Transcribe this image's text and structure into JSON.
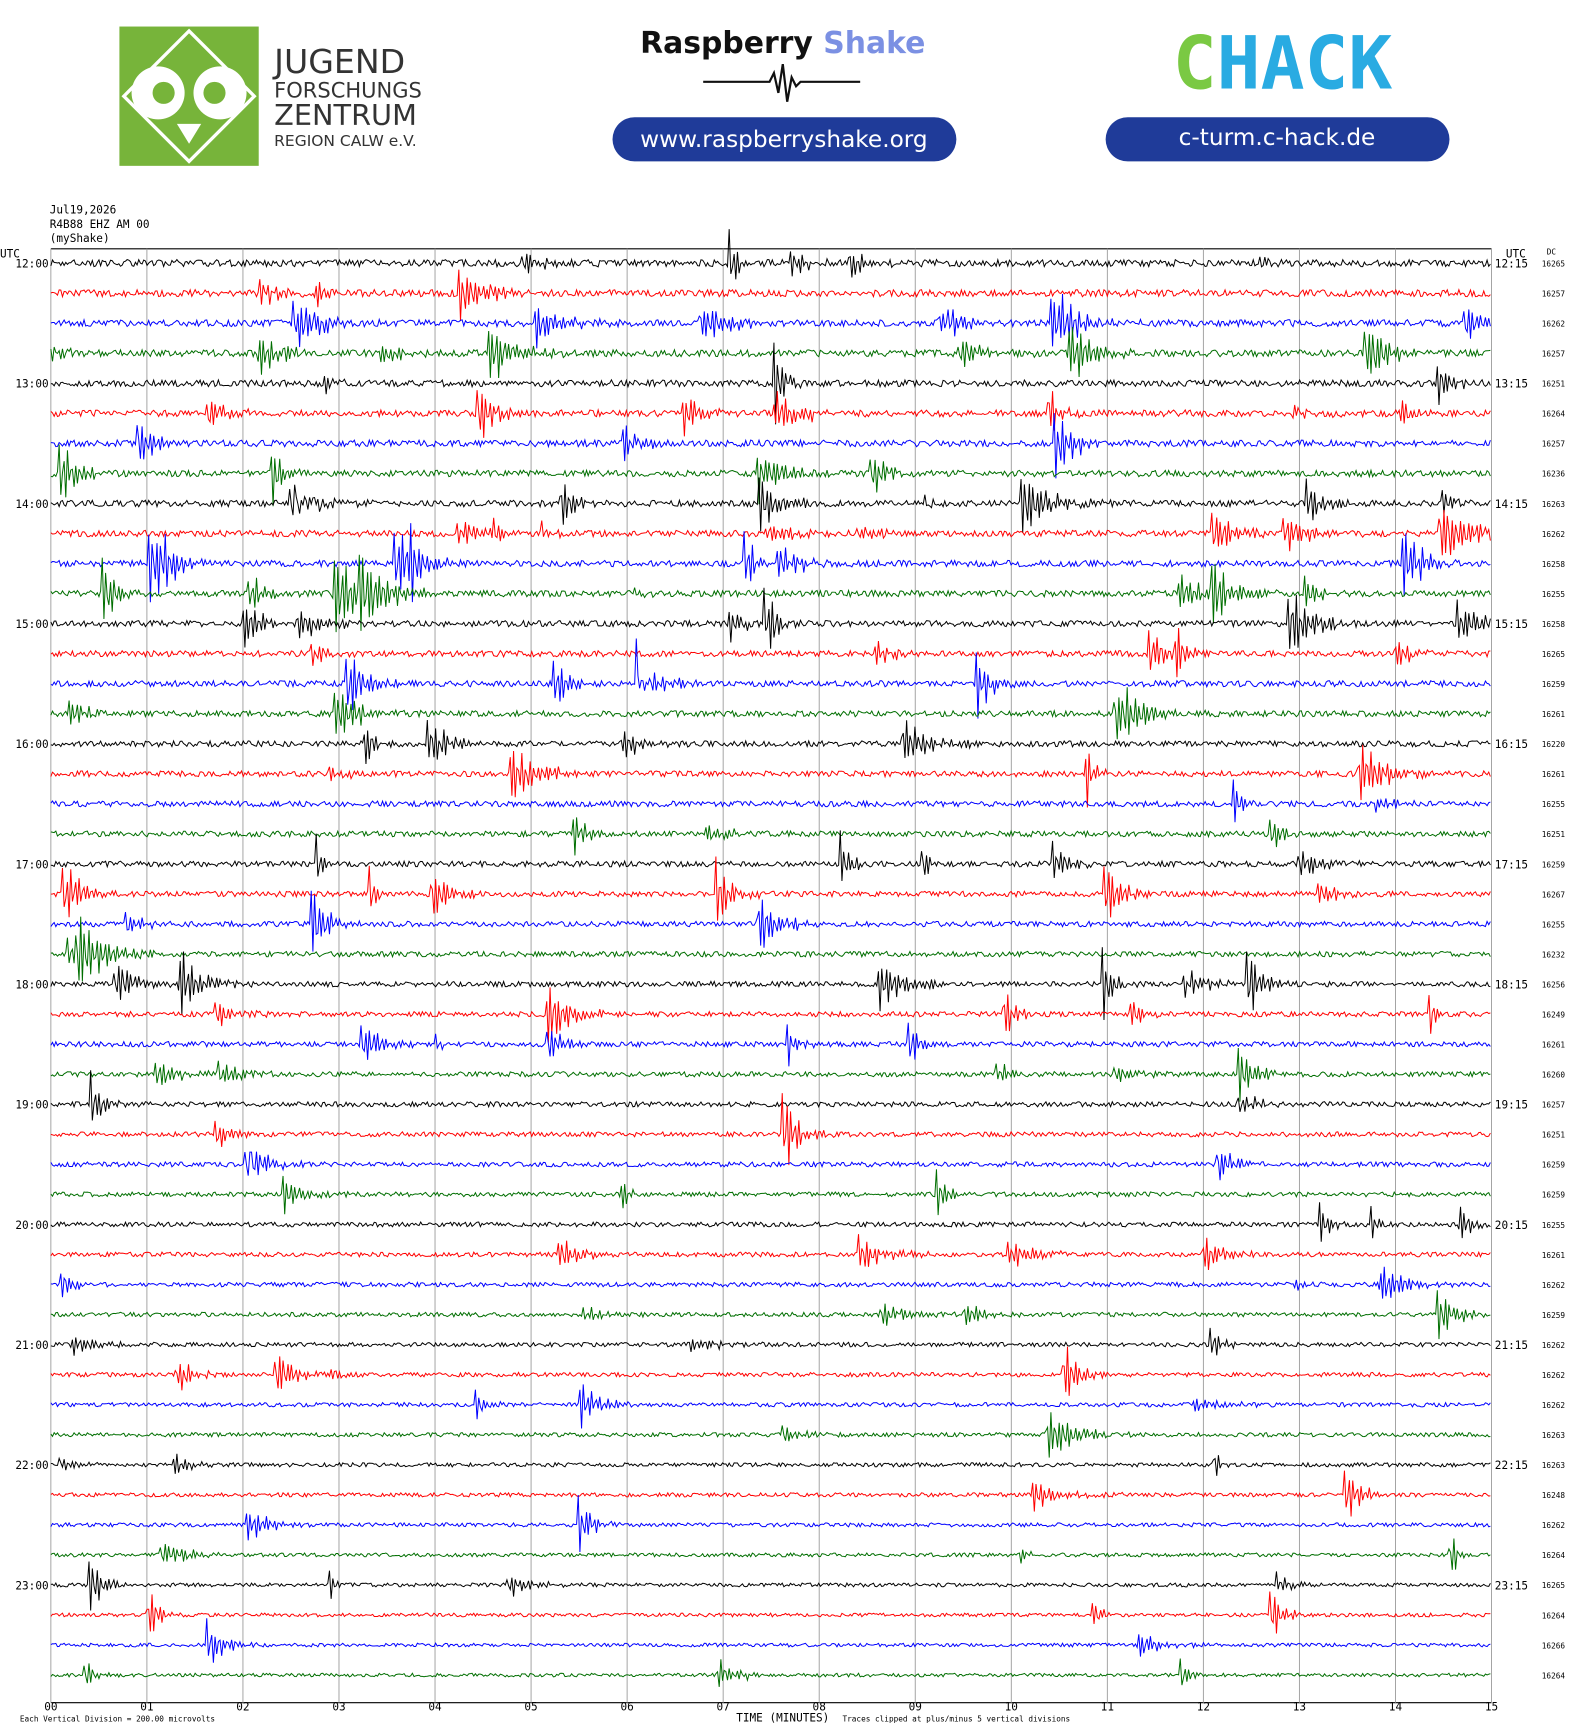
{
  "header": {
    "logo_left": {
      "lines": [
        "JUGEND",
        "FORSCHUNGS",
        "ZENTRUM",
        "REGION CALW e.V."
      ]
    },
    "center": {
      "brand": [
        "Raspberry",
        "Shake"
      ],
      "url": "www.raspberryshake.org"
    },
    "right": {
      "logo": [
        "C",
        "HACK"
      ],
      "url": "c-turm.c-hack.de"
    }
  },
  "helicorder": {
    "date": "Jul19,2026",
    "station": "R4B88 EHZ AM 00",
    "source": "(myShake)",
    "left_axis_title": "UTC",
    "right_axis_title": "UTC",
    "dc_title": "DC",
    "left_labels": [
      "12:00",
      "13:00",
      "14:00",
      "15:00",
      "16:00",
      "17:00",
      "18:00",
      "19:00",
      "20:00",
      "21:00",
      "22:00",
      "23:00"
    ],
    "right_labels": [
      "12:15",
      "13:15",
      "14:15",
      "15:15",
      "16:15",
      "17:15",
      "18:15",
      "19:15",
      "20:15",
      "21:15",
      "22:15",
      "23:15"
    ],
    "dc_values": [
      16265,
      16257,
      16262,
      16257,
      16251,
      16264,
      16257,
      16236,
      16263,
      16262,
      16258,
      16255,
      16258,
      16265,
      16259,
      16261,
      16220,
      16261,
      16255,
      16251,
      16259,
      16267,
      16255,
      16232,
      16256,
      16249,
      16261,
      16260,
      16257,
      16251,
      16259,
      16259,
      16255,
      16261,
      16262,
      16259,
      16262,
      16262,
      16262,
      16263,
      16263,
      16248,
      16262,
      16264,
      16265,
      16264,
      16266,
      16264
    ],
    "x_labels": [
      "00",
      "01",
      "02",
      "03",
      "04",
      "05",
      "06",
      "07",
      "08",
      "09",
      "10",
      "11",
      "12",
      "13",
      "14",
      "15"
    ],
    "x_axis_title": "TIME (MINUTES)",
    "scale_note": "Each Vertical Division =  200.00 microvolts",
    "clip_note": "Traces clipped at plus/minus 5 vertical divisions",
    "colors": [
      "#000000",
      "#ff0000",
      "#0000ff",
      "#006e00"
    ]
  }
}
